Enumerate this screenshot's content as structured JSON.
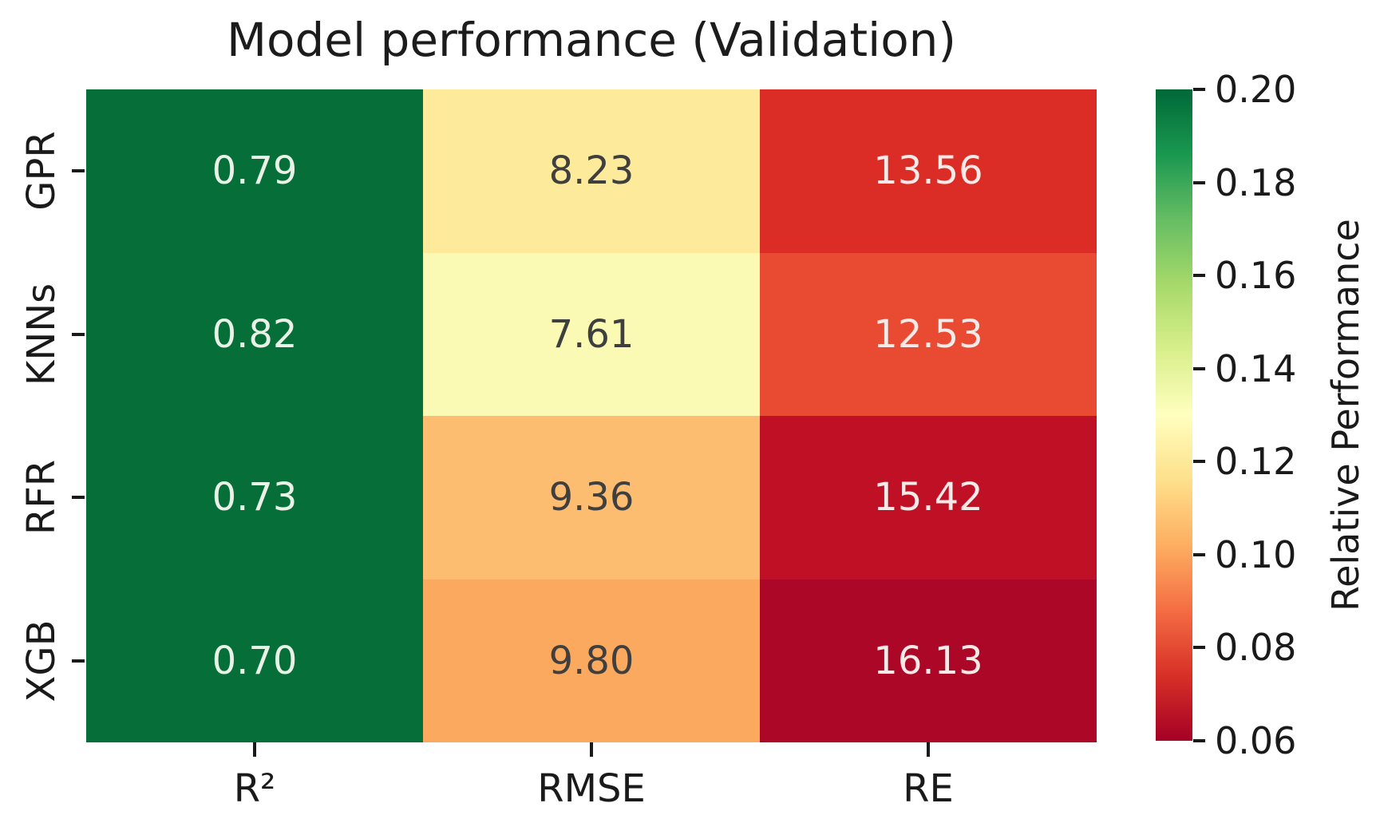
{
  "title": "Model performance (Validation)",
  "chart_data": {
    "type": "heatmap",
    "rows": [
      "GPR",
      "KNNs",
      "RFR",
      "XGB"
    ],
    "columns": [
      "R²",
      "RMSE",
      "RE"
    ],
    "values": [
      [
        0.79,
        8.23,
        13.56
      ],
      [
        0.82,
        7.61,
        12.53
      ],
      [
        0.73,
        9.36,
        15.42
      ],
      [
        0.7,
        9.8,
        16.13
      ]
    ],
    "cell_labels": [
      [
        "0.79",
        "8.23",
        "13.56"
      ],
      [
        "0.82",
        "7.61",
        "12.53"
      ],
      [
        "0.73",
        "9.36",
        "15.42"
      ],
      [
        "0.70",
        "9.80",
        "16.13"
      ]
    ],
    "cell_colors": [
      [
        "#066e38",
        "#fdea9b",
        "#dc2c26"
      ],
      [
        "#066e38",
        "#fafab4",
        "#e84b31"
      ],
      [
        "#066e38",
        "#fcbd71",
        "#bf1026"
      ],
      [
        "#066e38",
        "#fba95f",
        "#ac0726"
      ]
    ],
    "cell_text_colors": [
      [
        "#eaf2e8",
        "#3f3f3f",
        "#f6eae8"
      ],
      [
        "#eaf2e8",
        "#3f3f3f",
        "#f6eae8"
      ],
      [
        "#eaf2e8",
        "#3f3f3f",
        "#f6eae8"
      ],
      [
        "#eaf2e8",
        "#3f3f3f",
        "#f6eae8"
      ]
    ],
    "colormap_name": "RdYlGn",
    "colorbar": {
      "label": "Relative Performance",
      "ticks": [
        "0.20",
        "0.18",
        "0.16",
        "0.14",
        "0.12",
        "0.10",
        "0.08",
        "0.06"
      ],
      "range": [
        0.06,
        0.2
      ],
      "gradient_bottom_to_top": [
        "#a50026",
        "#d73027",
        "#f46d43",
        "#fdae61",
        "#fee08b",
        "#ffffbf",
        "#d9ef8b",
        "#a6d96a",
        "#66bd63",
        "#1a9850",
        "#006837"
      ]
    },
    "grid": false,
    "legend_position": "right-colorbar"
  }
}
